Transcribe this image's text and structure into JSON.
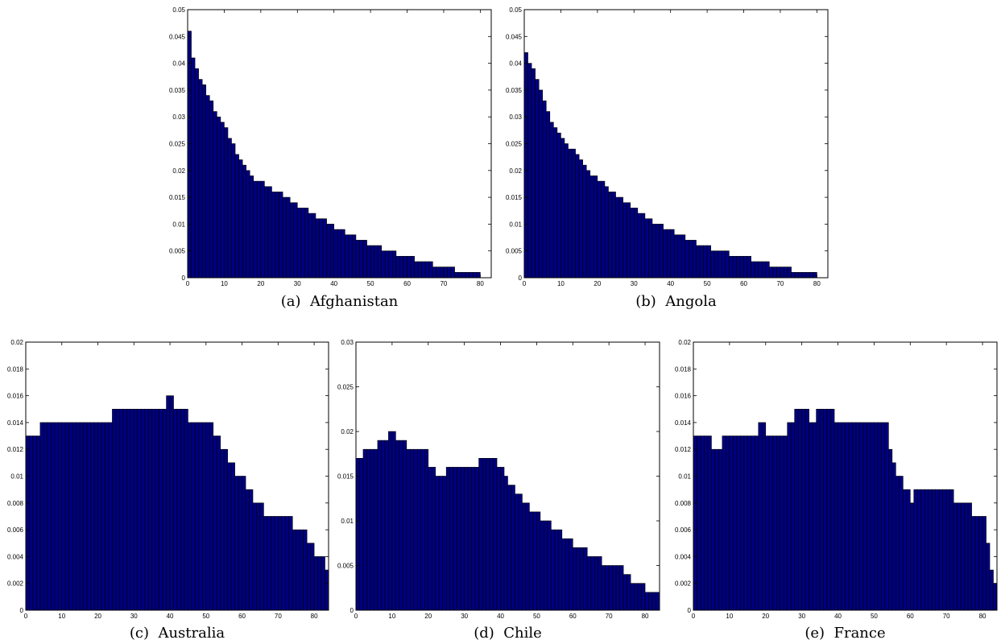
{
  "chart_data": [
    {
      "type": "bar",
      "caption": "(a)  Afghanistan",
      "x": [
        0,
        1,
        2,
        3,
        4,
        5,
        6,
        7,
        8,
        9,
        10,
        11,
        12,
        13,
        14,
        15,
        16,
        17,
        18,
        19,
        20,
        21,
        22,
        23,
        24,
        25,
        26,
        27,
        28,
        29,
        30,
        31,
        32,
        33,
        34,
        35,
        36,
        37,
        38,
        39,
        40,
        41,
        42,
        43,
        44,
        45,
        46,
        47,
        48,
        49,
        50,
        51,
        52,
        53,
        54,
        55,
        56,
        57,
        58,
        59,
        60,
        61,
        62,
        63,
        64,
        65,
        66,
        67,
        68,
        69,
        70,
        71,
        72,
        73,
        74,
        75,
        76,
        77,
        78,
        79
      ],
      "values": [
        0.046,
        0.041,
        0.039,
        0.037,
        0.036,
        0.034,
        0.033,
        0.031,
        0.03,
        0.029,
        0.028,
        0.026,
        0.025,
        0.023,
        0.022,
        0.021,
        0.02,
        0.019,
        0.018,
        0.018,
        0.018,
        0.017,
        0.017,
        0.016,
        0.016,
        0.016,
        0.015,
        0.015,
        0.014,
        0.014,
        0.013,
        0.013,
        0.013,
        0.012,
        0.012,
        0.011,
        0.011,
        0.011,
        0.01,
        0.01,
        0.009,
        0.009,
        0.009,
        0.008,
        0.008,
        0.008,
        0.007,
        0.007,
        0.007,
        0.006,
        0.006,
        0.006,
        0.006,
        0.005,
        0.005,
        0.005,
        0.005,
        0.004,
        0.004,
        0.004,
        0.004,
        0.004,
        0.003,
        0.003,
        0.003,
        0.003,
        0.003,
        0.002,
        0.002,
        0.002,
        0.002,
        0.002,
        0.002,
        0.001,
        0.001,
        0.001,
        0.001,
        0.001,
        0.001,
        0.001
      ],
      "xlim": [
        0,
        83
      ],
      "ylim": [
        0,
        0.05
      ],
      "xticks": [
        "0",
        "10",
        "20",
        "30",
        "40",
        "50",
        "60",
        "70",
        "80"
      ],
      "yticks": [
        "0",
        "0.005",
        "0.01",
        "0.015",
        "0.02",
        "0.025",
        "0.03",
        "0.035",
        "0.04",
        "0.045",
        "0.05"
      ],
      "bar_color": "#00007f",
      "edge_color": "#000000"
    },
    {
      "type": "bar",
      "caption": "(b)  Angola",
      "x": [
        0,
        1,
        2,
        3,
        4,
        5,
        6,
        7,
        8,
        9,
        10,
        11,
        12,
        13,
        14,
        15,
        16,
        17,
        18,
        19,
        20,
        21,
        22,
        23,
        24,
        25,
        26,
        27,
        28,
        29,
        30,
        31,
        32,
        33,
        34,
        35,
        36,
        37,
        38,
        39,
        40,
        41,
        42,
        43,
        44,
        45,
        46,
        47,
        48,
        49,
        50,
        51,
        52,
        53,
        54,
        55,
        56,
        57,
        58,
        59,
        60,
        61,
        62,
        63,
        64,
        65,
        66,
        67,
        68,
        69,
        70,
        71,
        72,
        73,
        74,
        75,
        76,
        77,
        78,
        79
      ],
      "values": [
        0.042,
        0.04,
        0.039,
        0.037,
        0.035,
        0.033,
        0.031,
        0.029,
        0.028,
        0.027,
        0.026,
        0.025,
        0.024,
        0.024,
        0.023,
        0.022,
        0.021,
        0.02,
        0.019,
        0.019,
        0.018,
        0.018,
        0.017,
        0.016,
        0.016,
        0.015,
        0.015,
        0.014,
        0.014,
        0.013,
        0.013,
        0.012,
        0.012,
        0.011,
        0.011,
        0.01,
        0.01,
        0.01,
        0.009,
        0.009,
        0.009,
        0.008,
        0.008,
        0.008,
        0.007,
        0.007,
        0.007,
        0.006,
        0.006,
        0.006,
        0.006,
        0.005,
        0.005,
        0.005,
        0.005,
        0.005,
        0.004,
        0.004,
        0.004,
        0.004,
        0.004,
        0.004,
        0.003,
        0.003,
        0.003,
        0.003,
        0.003,
        0.002,
        0.002,
        0.002,
        0.002,
        0.002,
        0.002,
        0.001,
        0.001,
        0.001,
        0.001,
        0.001,
        0.001,
        0.001
      ],
      "xlim": [
        0,
        83
      ],
      "ylim": [
        0,
        0.05
      ],
      "xticks": [
        "0",
        "10",
        "20",
        "30",
        "40",
        "50",
        "60",
        "70",
        "80"
      ],
      "yticks": [
        "0",
        "0.005",
        "0.01",
        "0.015",
        "0.02",
        "0.025",
        "0.03",
        "0.035",
        "0.04",
        "0.045",
        "0.05"
      ],
      "bar_color": "#00007f",
      "edge_color": "#000000"
    },
    {
      "type": "bar",
      "caption": "(c)  Australia",
      "x": [
        0,
        1,
        2,
        3,
        4,
        5,
        6,
        7,
        8,
        9,
        10,
        11,
        12,
        13,
        14,
        15,
        16,
        17,
        18,
        19,
        20,
        21,
        22,
        23,
        24,
        25,
        26,
        27,
        28,
        29,
        30,
        31,
        32,
        33,
        34,
        35,
        36,
        37,
        38,
        39,
        40,
        41,
        42,
        43,
        44,
        45,
        46,
        47,
        48,
        49,
        50,
        51,
        52,
        53,
        54,
        55,
        56,
        57,
        58,
        59,
        60,
        61,
        62,
        63,
        64,
        65,
        66,
        67,
        68,
        69,
        70,
        71,
        72,
        73,
        74,
        75,
        76,
        77,
        78,
        79,
        80,
        81,
        82,
        83
      ],
      "values": [
        0.013,
        0.013,
        0.013,
        0.013,
        0.014,
        0.014,
        0.014,
        0.014,
        0.014,
        0.014,
        0.014,
        0.014,
        0.014,
        0.014,
        0.014,
        0.014,
        0.014,
        0.014,
        0.014,
        0.014,
        0.014,
        0.014,
        0.014,
        0.014,
        0.015,
        0.015,
        0.015,
        0.015,
        0.015,
        0.015,
        0.015,
        0.015,
        0.015,
        0.015,
        0.015,
        0.015,
        0.015,
        0.015,
        0.015,
        0.016,
        0.016,
        0.015,
        0.015,
        0.015,
        0.015,
        0.014,
        0.014,
        0.014,
        0.014,
        0.014,
        0.014,
        0.014,
        0.013,
        0.013,
        0.012,
        0.012,
        0.011,
        0.011,
        0.01,
        0.01,
        0.01,
        0.009,
        0.009,
        0.008,
        0.008,
        0.008,
        0.007,
        0.007,
        0.007,
        0.007,
        0.007,
        0.007,
        0.007,
        0.007,
        0.006,
        0.006,
        0.006,
        0.006,
        0.005,
        0.005,
        0.004,
        0.004,
        0.004,
        0.003
      ],
      "xlim": [
        0,
        84
      ],
      "ylim": [
        0,
        0.02
      ],
      "xticks": [
        "0",
        "10",
        "20",
        "30",
        "40",
        "50",
        "60",
        "70",
        "80"
      ],
      "yticks": [
        "0",
        "0.002",
        "0.004",
        "0.006",
        "0.008",
        "0.01",
        "0.012",
        "0.014",
        "0.016",
        "0.018",
        "0.02"
      ],
      "bar_color": "#00007f",
      "edge_color": "#000000"
    },
    {
      "type": "bar",
      "caption": "(d)  Chile",
      "x": [
        0,
        1,
        2,
        3,
        4,
        5,
        6,
        7,
        8,
        9,
        10,
        11,
        12,
        13,
        14,
        15,
        16,
        17,
        18,
        19,
        20,
        21,
        22,
        23,
        24,
        25,
        26,
        27,
        28,
        29,
        30,
        31,
        32,
        33,
        34,
        35,
        36,
        37,
        38,
        39,
        40,
        41,
        42,
        43,
        44,
        45,
        46,
        47,
        48,
        49,
        50,
        51,
        52,
        53,
        54,
        55,
        56,
        57,
        58,
        59,
        60,
        61,
        62,
        63,
        64,
        65,
        66,
        67,
        68,
        69,
        70,
        71,
        72,
        73,
        74,
        75,
        76,
        77,
        78,
        79,
        80,
        81,
        82,
        83
      ],
      "values": [
        0.017,
        0.017,
        0.018,
        0.018,
        0.018,
        0.018,
        0.019,
        0.019,
        0.019,
        0.02,
        0.02,
        0.019,
        0.019,
        0.019,
        0.018,
        0.018,
        0.018,
        0.018,
        0.018,
        0.018,
        0.016,
        0.016,
        0.015,
        0.015,
        0.015,
        0.016,
        0.016,
        0.016,
        0.016,
        0.016,
        0.016,
        0.016,
        0.016,
        0.016,
        0.017,
        0.017,
        0.017,
        0.017,
        0.017,
        0.016,
        0.016,
        0.015,
        0.014,
        0.014,
        0.013,
        0.013,
        0.012,
        0.012,
        0.011,
        0.011,
        0.011,
        0.01,
        0.01,
        0.01,
        0.009,
        0.009,
        0.009,
        0.008,
        0.008,
        0.008,
        0.007,
        0.007,
        0.007,
        0.007,
        0.006,
        0.006,
        0.006,
        0.006,
        0.005,
        0.005,
        0.005,
        0.005,
        0.005,
        0.005,
        0.004,
        0.004,
        0.003,
        0.003,
        0.003,
        0.003,
        0.002,
        0.002,
        0.002,
        0.002
      ],
      "xlim": [
        0,
        84
      ],
      "ylim": [
        0,
        0.03
      ],
      "xticks": [
        "0",
        "10",
        "20",
        "30",
        "40",
        "50",
        "60",
        "70",
        "80"
      ],
      "yticks": [
        "0",
        "0.005",
        "0.01",
        "0.015",
        "0.02",
        "0.025",
        "0.03"
      ],
      "bar_color": "#00007f",
      "edge_color": "#000000"
    },
    {
      "type": "bar",
      "caption": "(e)  France",
      "x": [
        0,
        1,
        2,
        3,
        4,
        5,
        6,
        7,
        8,
        9,
        10,
        11,
        12,
        13,
        14,
        15,
        16,
        17,
        18,
        19,
        20,
        21,
        22,
        23,
        24,
        25,
        26,
        27,
        28,
        29,
        30,
        31,
        32,
        33,
        34,
        35,
        36,
        37,
        38,
        39,
        40,
        41,
        42,
        43,
        44,
        45,
        46,
        47,
        48,
        49,
        50,
        51,
        52,
        53,
        54,
        55,
        56,
        57,
        58,
        59,
        60,
        61,
        62,
        63,
        64,
        65,
        66,
        67,
        68,
        69,
        70,
        71,
        72,
        73,
        74,
        75,
        76,
        77,
        78,
        79,
        80,
        81,
        82,
        83
      ],
      "values": [
        0.013,
        0.013,
        0.013,
        0.013,
        0.013,
        0.012,
        0.012,
        0.012,
        0.013,
        0.013,
        0.013,
        0.013,
        0.013,
        0.013,
        0.013,
        0.013,
        0.013,
        0.013,
        0.014,
        0.014,
        0.013,
        0.013,
        0.013,
        0.013,
        0.013,
        0.013,
        0.014,
        0.014,
        0.015,
        0.015,
        0.015,
        0.015,
        0.014,
        0.014,
        0.015,
        0.015,
        0.015,
        0.015,
        0.015,
        0.014,
        0.014,
        0.014,
        0.014,
        0.014,
        0.014,
        0.014,
        0.014,
        0.014,
        0.014,
        0.014,
        0.014,
        0.014,
        0.014,
        0.014,
        0.012,
        0.011,
        0.01,
        0.01,
        0.009,
        0.009,
        0.008,
        0.009,
        0.009,
        0.009,
        0.009,
        0.009,
        0.009,
        0.009,
        0.009,
        0.009,
        0.009,
        0.009,
        0.008,
        0.008,
        0.008,
        0.008,
        0.008,
        0.007,
        0.007,
        0.007,
        0.007,
        0.005,
        0.003,
        0.002
      ],
      "xlim": [
        0,
        84
      ],
      "ylim": [
        0,
        0.02
      ],
      "xticks": [
        "0",
        "10",
        "20",
        "30",
        "40",
        "50",
        "60",
        "70",
        "80"
      ],
      "yticks": [
        "0",
        "0.002",
        "0.004",
        "0.006",
        "0.008",
        "0.01",
        "0.012",
        "0.014",
        "0.016",
        "0.018",
        "0.02"
      ],
      "bar_color": "#00007f",
      "edge_color": "#000000"
    }
  ]
}
